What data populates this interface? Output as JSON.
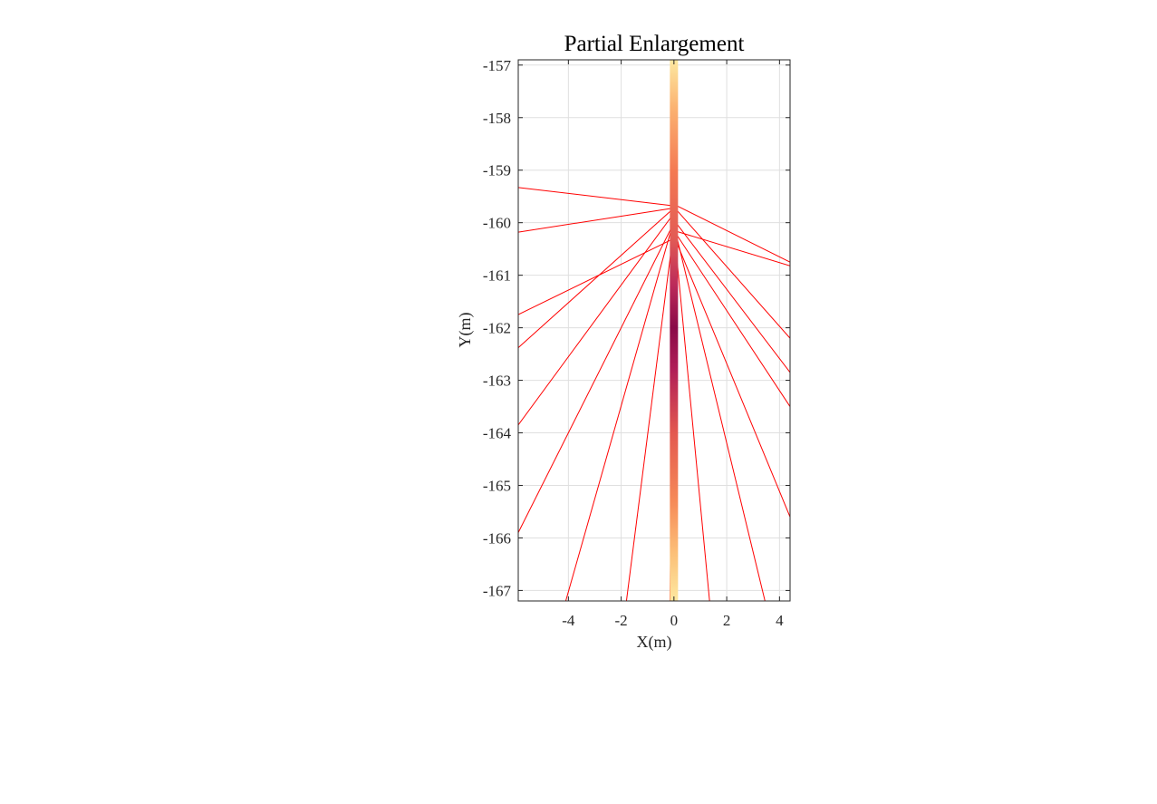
{
  "chart_data": {
    "type": "line",
    "title": "Partial Enlargement",
    "xlabel": "X(m)",
    "ylabel": "Y(m)",
    "xlim": [
      -5.9,
      4.4
    ],
    "ylim": [
      -167.2,
      -156.9
    ],
    "xticks": [
      -4,
      -2,
      0,
      2,
      4
    ],
    "yticks": [
      -157,
      -158,
      -159,
      -160,
      -161,
      -162,
      -163,
      -164,
      -165,
      -166,
      -167
    ],
    "xtick_labels": [
      "-4",
      "-2",
      "0",
      "2",
      "4"
    ],
    "ytick_labels": [
      "-157",
      "-158",
      "-159",
      "-160",
      "-161",
      "-162",
      "-163",
      "-164",
      "-165",
      "-166",
      "-167"
    ],
    "grid": true,
    "ray_color": "#ff0000",
    "beam": {
      "x": 0,
      "y_range": [
        -167.2,
        -156.9
      ],
      "colormap": [
        {
          "y": -156.9,
          "color": "#fde8a0"
        },
        {
          "y": -157.8,
          "color": "#fbb372"
        },
        {
          "y": -159.0,
          "color": "#f47a52"
        },
        {
          "y": -160.3,
          "color": "#e25b55"
        },
        {
          "y": -161.2,
          "color": "#bb2a5a"
        },
        {
          "y": -162.0,
          "color": "#8a0a48"
        },
        {
          "y": -162.8,
          "color": "#b01e57"
        },
        {
          "y": -164.0,
          "color": "#e3584f"
        },
        {
          "y": -165.3,
          "color": "#f68a58"
        },
        {
          "y": -166.3,
          "color": "#fcc078"
        },
        {
          "y": -167.2,
          "color": "#fde8a0"
        }
      ]
    },
    "rays": [
      {
        "points": [
          [
            -5.9,
            -159.33
          ],
          [
            0,
            -159.68
          ]
        ]
      },
      {
        "points": [
          [
            -5.9,
            -160.18
          ],
          [
            0,
            -159.72
          ]
        ]
      },
      {
        "points": [
          [
            0,
            -159.65
          ],
          [
            4.4,
            -160.75
          ]
        ]
      },
      {
        "points": [
          [
            0,
            -160.15
          ],
          [
            4.4,
            -160.82
          ]
        ]
      },
      {
        "points": [
          [
            -5.9,
            -161.75
          ],
          [
            0,
            -160.3
          ]
        ]
      },
      {
        "points": [
          [
            -5.9,
            -162.38
          ],
          [
            0,
            -159.72
          ]
        ]
      },
      {
        "points": [
          [
            -5.9,
            -163.85
          ],
          [
            0,
            -159.82
          ]
        ]
      },
      {
        "points": [
          [
            -5.9,
            -165.9
          ],
          [
            0,
            -160.0
          ]
        ]
      },
      {
        "points": [
          [
            -4.1,
            -167.2
          ],
          [
            0,
            -159.95
          ]
        ]
      },
      {
        "points": [
          [
            -1.8,
            -167.2
          ],
          [
            0,
            -160.1
          ]
        ]
      },
      {
        "points": [
          [
            -0.15,
            -167.2
          ],
          [
            0,
            -161.25
          ]
        ]
      },
      {
        "points": [
          [
            0,
            -160.1
          ],
          [
            1.35,
            -167.2
          ]
        ]
      },
      {
        "points": [
          [
            0,
            -160.05
          ],
          [
            3.45,
            -167.2
          ]
        ]
      },
      {
        "points": [
          [
            0,
            -160.25
          ],
          [
            4.4,
            -165.6
          ]
        ]
      },
      {
        "points": [
          [
            0,
            -160.15
          ],
          [
            4.4,
            -163.5
          ]
        ]
      },
      {
        "points": [
          [
            0,
            -159.95
          ],
          [
            4.4,
            -162.85
          ]
        ]
      },
      {
        "points": [
          [
            0,
            -159.7
          ],
          [
            4.4,
            -162.2
          ]
        ]
      }
    ]
  }
}
